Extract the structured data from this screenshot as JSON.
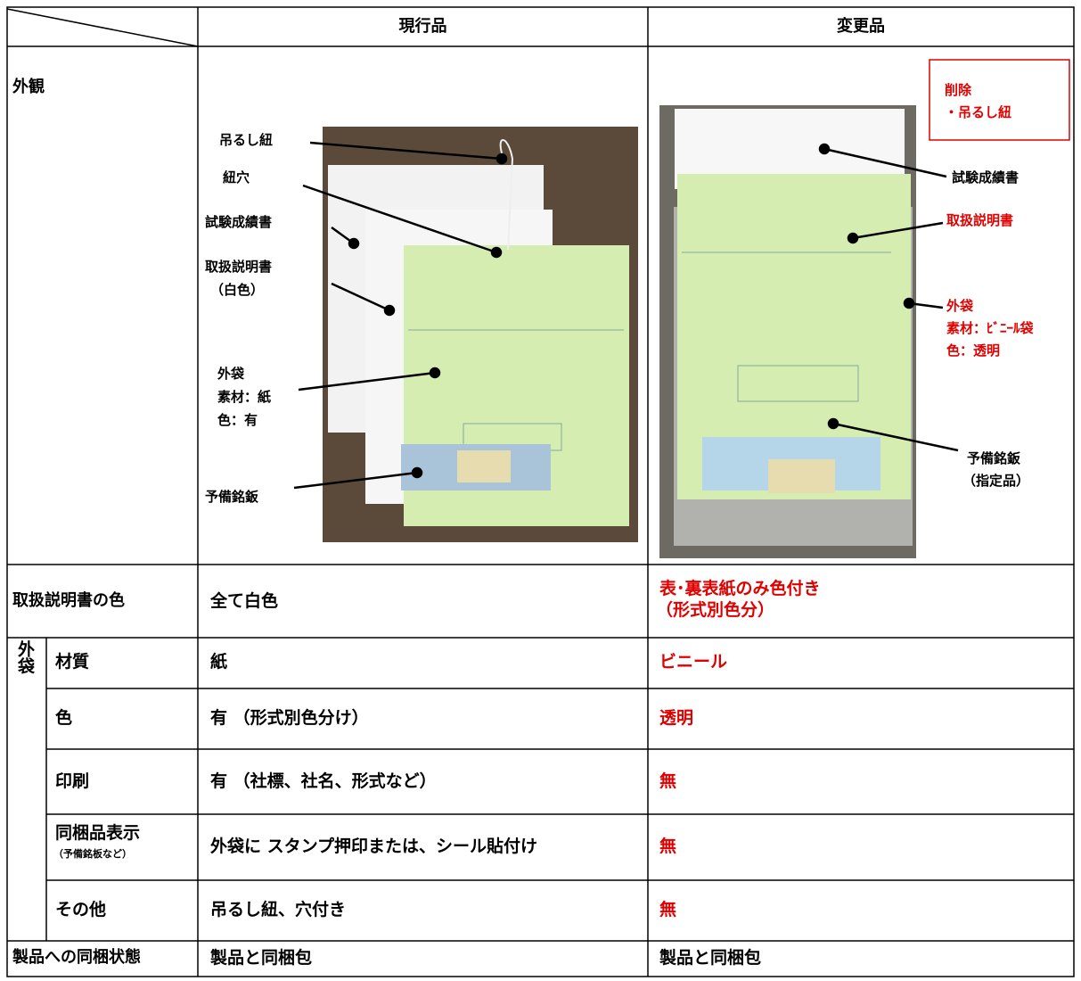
{
  "table": {
    "columns": [
      "現行品",
      "変更品"
    ],
    "appearance": {
      "label": "外観",
      "current_callouts": [
        {
          "lines": [
            "吊るし紐"
          ]
        },
        {
          "lines": [
            "紐穴"
          ]
        },
        {
          "lines": [
            "試験成績書"
          ]
        },
        {
          "lines": [
            "取扱説明書",
            "（白色）"
          ]
        },
        {
          "lines": [
            "外袋",
            "素材：紙",
            "色：有"
          ]
        },
        {
          "lines": [
            "予備銘鈑"
          ]
        }
      ],
      "changed_note": [
        "削除",
        "・吊るし紐"
      ],
      "changed_callouts": [
        {
          "lines": [
            "試験成績書"
          ]
        },
        {
          "lines": [
            "取扱説明書"
          ]
        },
        {
          "lines": [
            "外袋",
            "素材：ﾋﾞﾆｰﾙ袋",
            "色：透明"
          ]
        },
        {
          "lines": [
            "予備銘鈑",
            "（指定品）"
          ]
        }
      ]
    },
    "manual_color": {
      "label": "取扱説明書の色",
      "current": "全て白色",
      "changed": [
        "表･裏表紙のみ色付き",
        "（形式別色分）"
      ]
    },
    "outer_bag": {
      "label": "外袋",
      "rows": [
        {
          "label": "材質",
          "current": "紙",
          "changed": "ビニール"
        },
        {
          "label": "色",
          "current": "有 （形式別色分け）",
          "changed": "透明"
        },
        {
          "label": "印刷",
          "current": "有 （社標、社名、形式など）",
          "changed": "無"
        },
        {
          "label": "同梱品表示",
          "sublabel": "（予備銘板など）",
          "current": "外袋に スタンプ押印または、シール貼付け",
          "changed": "無"
        },
        {
          "label": "その他",
          "current": "吊るし紐、穴付き",
          "changed": "無"
        }
      ]
    },
    "packing": {
      "label": "製品への同梱状態",
      "current": "製品と同梱包",
      "changed": "製品と同梱包"
    }
  }
}
